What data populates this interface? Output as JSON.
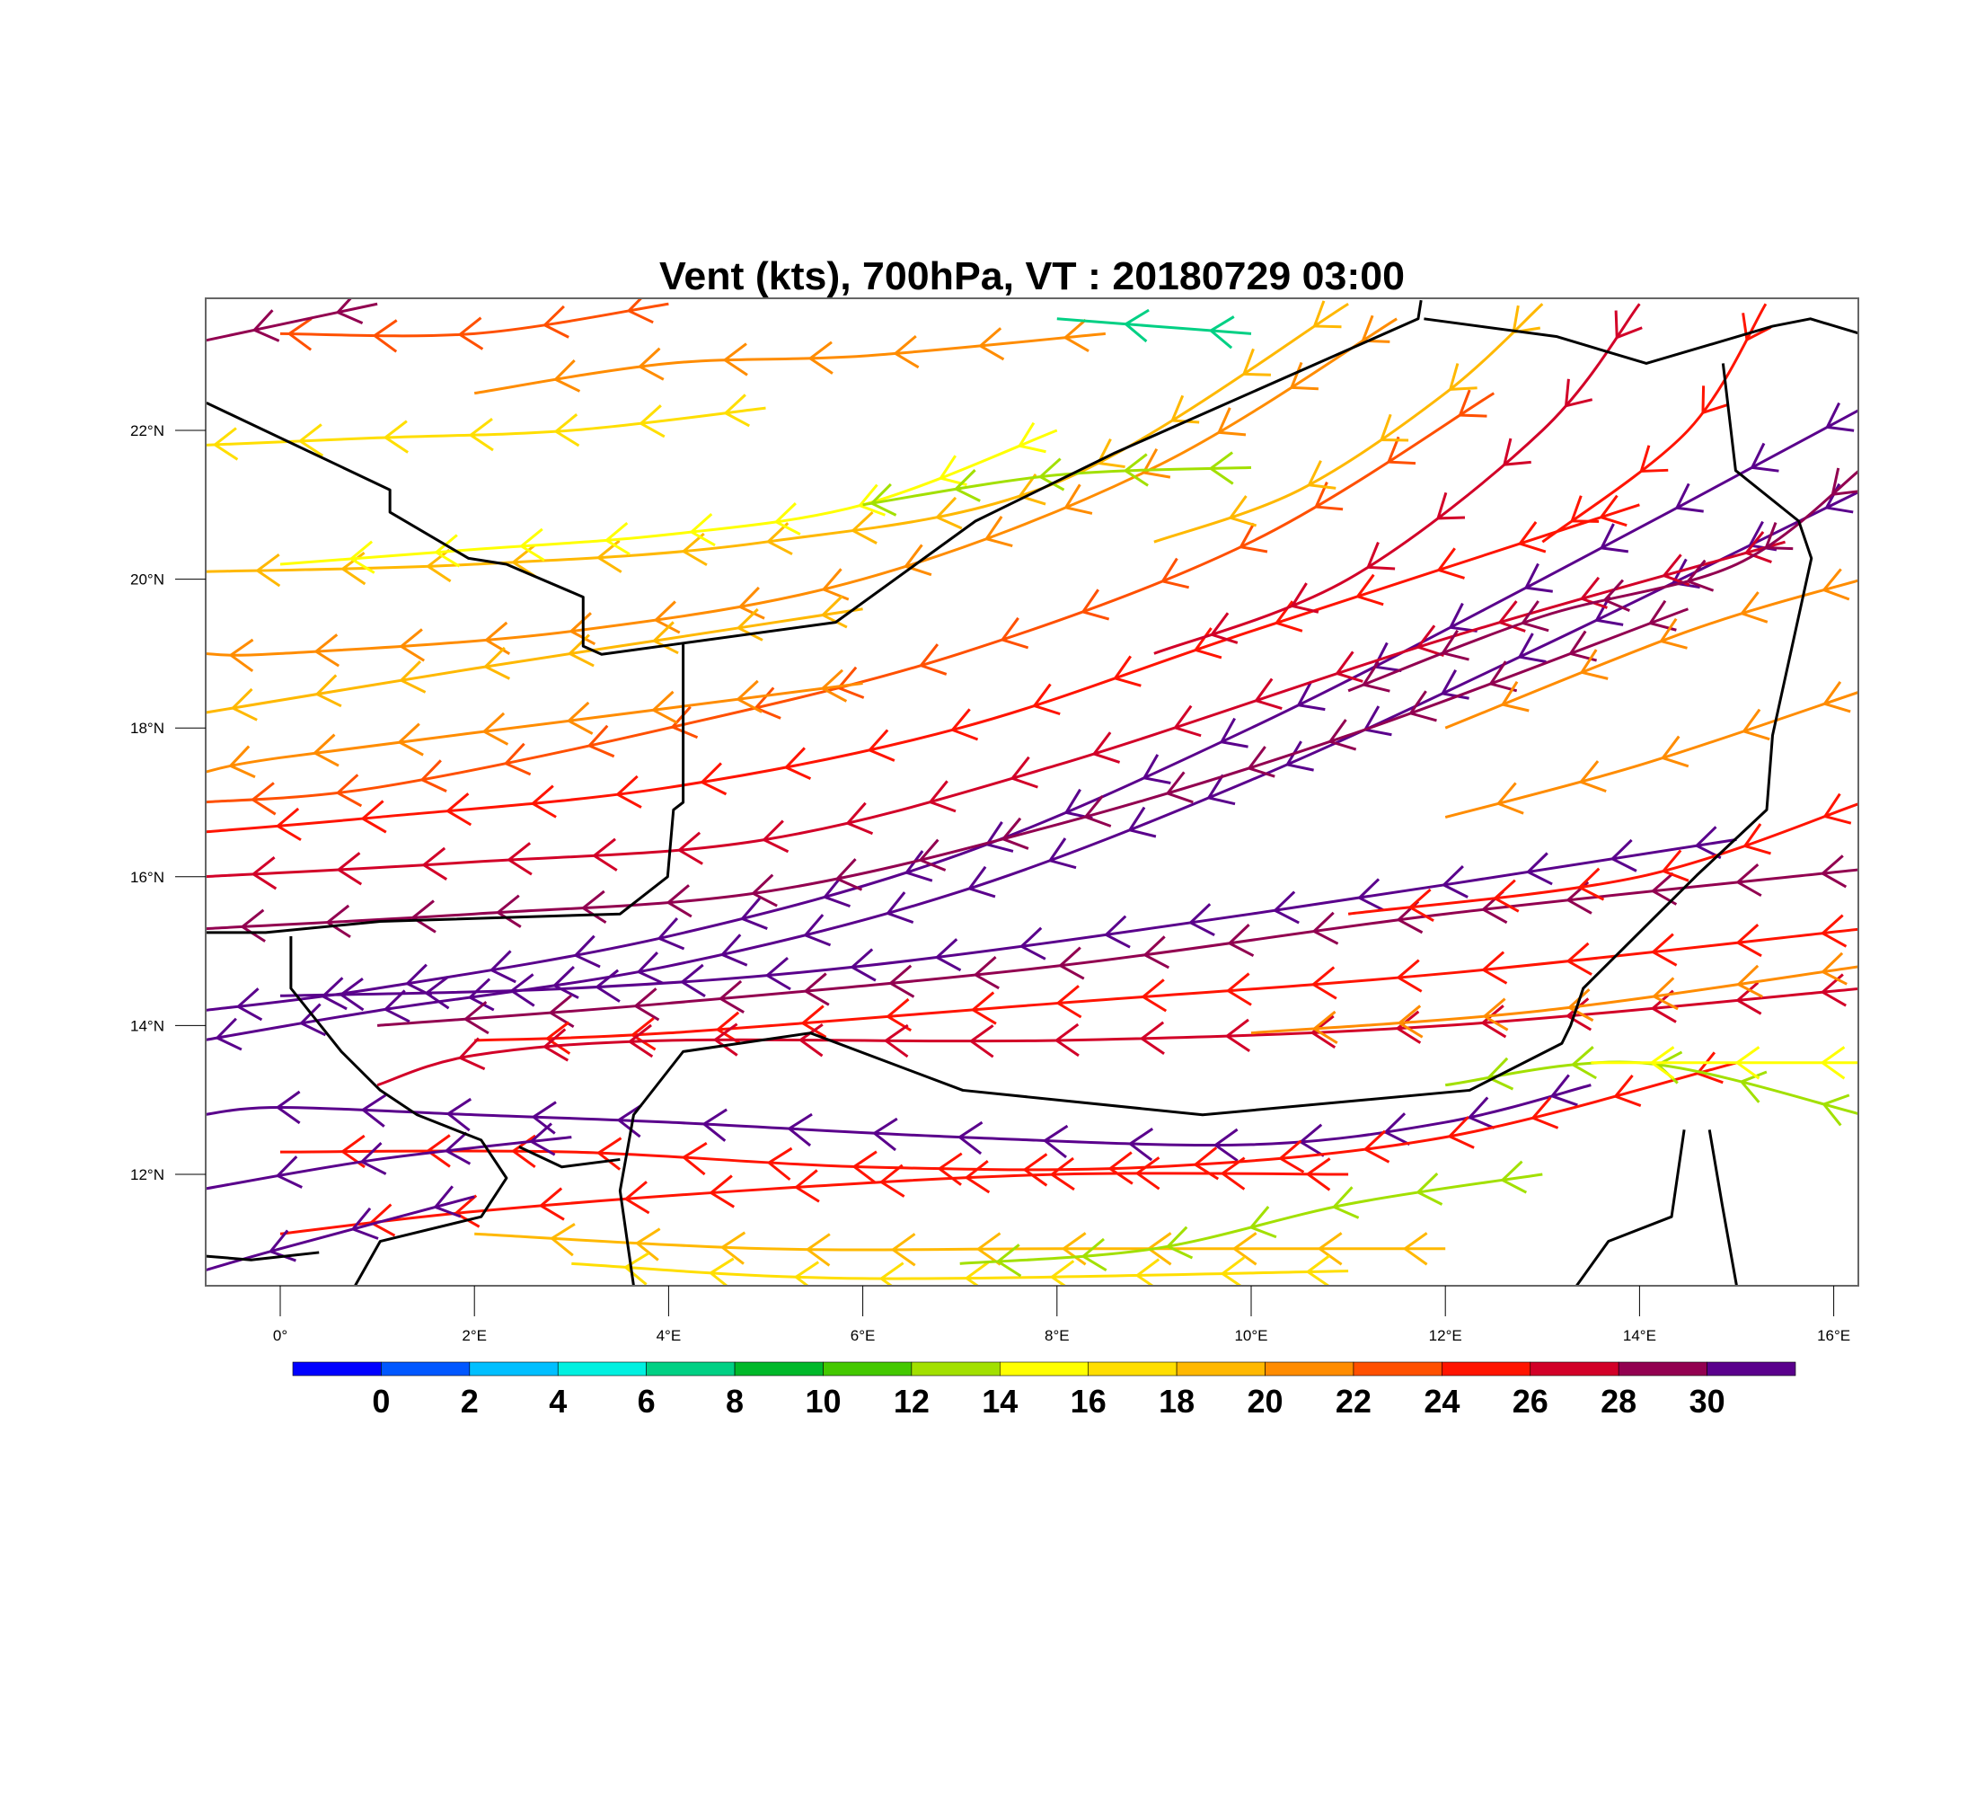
{
  "chart_data": {
    "type": "streamline-vector",
    "title": "Vent (kts), 700hPa, VT : 20180729  03:00",
    "xlim": [
      -0.76,
      16.27
    ],
    "ylim": [
      10.5,
      23.75
    ],
    "x_ticks": [
      {
        "value": 0,
        "label": "0°"
      },
      {
        "value": 2,
        "label": "2°E"
      },
      {
        "value": 4,
        "label": "4°E"
      },
      {
        "value": 6,
        "label": "6°E"
      },
      {
        "value": 8,
        "label": "8°E"
      },
      {
        "value": 10,
        "label": "10°E"
      },
      {
        "value": 12,
        "label": "12°E"
      },
      {
        "value": 14,
        "label": "14°E"
      },
      {
        "value": 16,
        "label": "16°E"
      }
    ],
    "y_ticks": [
      {
        "value": 12,
        "label": "12°N"
      },
      {
        "value": 14,
        "label": "14°N"
      },
      {
        "value": 16,
        "label": "16°N"
      },
      {
        "value": 18,
        "label": "18°N"
      },
      {
        "value": 20,
        "label": "20°N"
      },
      {
        "value": 22,
        "label": "22°N"
      }
    ],
    "colorbar": {
      "labels": [
        "0",
        "2",
        "4",
        "6",
        "8",
        "10",
        "12",
        "14",
        "16",
        "18",
        "20",
        "22",
        "24",
        "26",
        "28",
        "30"
      ],
      "colors": [
        "#0000ff",
        "#0057ff",
        "#00bfff",
        "#00f0e0",
        "#00d084",
        "#00b82a",
        "#44c800",
        "#a2e000",
        "#ffff00",
        "#ffde00",
        "#ffb800",
        "#ff8c00",
        "#ff5000",
        "#ff1400",
        "#d20028",
        "#920050",
        "#5a008c"
      ]
    },
    "streamlines": [
      {
        "speed": 30,
        "points": [
          [
            16.3,
            22.3
          ],
          [
            13,
            20
          ],
          [
            10,
            18
          ],
          [
            7,
            16.3
          ],
          [
            4,
            15.2
          ],
          [
            1,
            14.5
          ],
          [
            -0.8,
            14.2
          ]
        ]
      },
      {
        "speed": 31,
        "points": [
          [
            16.3,
            21.2
          ],
          [
            13,
            19.1
          ],
          [
            10,
            17.3
          ],
          [
            7,
            15.8
          ],
          [
            4,
            14.8
          ],
          [
            1,
            14.2
          ],
          [
            -0.8,
            13.8
          ]
        ]
      },
      {
        "speed": 29,
        "points": [
          [
            14.5,
            19.6
          ],
          [
            11,
            17.9
          ],
          [
            8,
            16.7
          ],
          [
            5,
            15.8
          ],
          [
            2,
            15.5
          ],
          [
            -0.8,
            15.3
          ]
        ]
      },
      {
        "speed": 31,
        "points": [
          [
            15,
            16.5
          ],
          [
            10,
            15.5
          ],
          [
            6,
            14.8
          ],
          [
            3,
            14.5
          ],
          [
            0,
            14.4
          ]
        ]
      },
      {
        "speed": 28,
        "points": [
          [
            16.3,
            16.1
          ],
          [
            12,
            15.5
          ],
          [
            8,
            14.8
          ],
          [
            4,
            14.3
          ],
          [
            1,
            14.0
          ]
        ]
      },
      {
        "speed": 25,
        "points": [
          [
            16.3,
            15.3
          ],
          [
            12,
            14.7
          ],
          [
            8,
            14.3
          ],
          [
            4,
            13.9
          ],
          [
            2,
            13.8
          ]
        ]
      },
      {
        "speed": 26,
        "points": [
          [
            16.3,
            14.5
          ],
          [
            12,
            14.0
          ],
          [
            8,
            13.8
          ],
          [
            4,
            13.8
          ],
          [
            2,
            13.6
          ],
          [
            1,
            13.2
          ]
        ]
      },
      {
        "speed": 21,
        "points": [
          [
            16.3,
            14.8
          ],
          [
            13,
            14.2
          ],
          [
            10,
            13.9
          ]
        ]
      },
      {
        "speed": 31,
        "points": [
          [
            13.5,
            13.2
          ],
          [
            12,
            12.7
          ],
          [
            10,
            12.4
          ],
          [
            7,
            12.5
          ],
          [
            4,
            12.7
          ],
          [
            2,
            12.8
          ],
          [
            0,
            12.9
          ],
          [
            -0.8,
            12.8
          ]
        ]
      },
      {
        "speed": 25,
        "points": [
          [
            15,
            13.5
          ],
          [
            12,
            12.5
          ],
          [
            9,
            12.1
          ],
          [
            6,
            12.1
          ],
          [
            3,
            12.3
          ],
          [
            0,
            12.3
          ]
        ]
      },
      {
        "speed": 24,
        "points": [
          [
            11,
            12.0
          ],
          [
            8,
            12.0
          ],
          [
            5,
            11.8
          ],
          [
            2,
            11.5
          ],
          [
            0,
            11.2
          ]
        ]
      },
      {
        "speed": 31,
        "points": [
          [
            3,
            12.5
          ],
          [
            1,
            12.2
          ],
          [
            -0.8,
            11.8
          ]
        ]
      },
      {
        "speed": 31,
        "points": [
          [
            2,
            11.7
          ],
          [
            0,
            11.0
          ],
          [
            -0.8,
            10.7
          ]
        ]
      },
      {
        "speed": 19,
        "points": [
          [
            12,
            11.0
          ],
          [
            8,
            11.0
          ],
          [
            5,
            11.0
          ],
          [
            2,
            11.2
          ]
        ]
      },
      {
        "speed": 16,
        "points": [
          [
            11,
            10.7
          ],
          [
            6,
            10.6
          ],
          [
            3,
            10.8
          ]
        ]
      },
      {
        "speed": 13,
        "points": [
          [
            16.3,
            12.8
          ],
          [
            14,
            13.5
          ],
          [
            12,
            13.2
          ]
        ]
      },
      {
        "speed": 15,
        "points": [
          [
            16.3,
            13.5
          ],
          [
            13.5,
            13.5
          ]
        ]
      },
      {
        "speed": 12,
        "points": [
          [
            13,
            12.0
          ],
          [
            11,
            11.6
          ],
          [
            9,
            11.0
          ],
          [
            7,
            10.8
          ]
        ]
      },
      {
        "speed": 26,
        "points": [
          [
            15.5,
            20.5
          ],
          [
            12,
            19.2
          ],
          [
            8,
            17.5
          ],
          [
            5,
            16.5
          ],
          [
            2,
            16.2
          ],
          [
            -0.8,
            16.0
          ]
        ]
      },
      {
        "speed": 24,
        "points": [
          [
            14,
            21
          ],
          [
            10,
            19.3
          ],
          [
            7,
            18
          ],
          [
            4,
            17.2
          ],
          [
            1,
            16.8
          ],
          [
            -0.8,
            16.6
          ]
        ]
      },
      {
        "speed": 22,
        "points": [
          [
            12.5,
            22.5
          ],
          [
            10,
            20.5
          ],
          [
            7,
            19
          ],
          [
            4,
            18
          ],
          [
            1,
            17.2
          ],
          [
            -0.8,
            17.0
          ]
        ]
      },
      {
        "speed": 20,
        "points": [
          [
            11.5,
            23.5
          ],
          [
            9,
            21.5
          ],
          [
            6,
            20
          ],
          [
            3,
            19.3
          ],
          [
            0,
            19
          ],
          [
            -0.8,
            19
          ]
        ]
      },
      {
        "speed": 18,
        "points": [
          [
            11,
            23.7
          ],
          [
            8,
            21.3
          ],
          [
            5,
            20.5
          ],
          [
            2,
            20.2
          ],
          [
            -0.8,
            20.1
          ]
        ]
      },
      {
        "speed": 28,
        "points": [
          [
            16.3,
            21.5
          ],
          [
            15,
            20.2
          ],
          [
            13,
            19.5
          ],
          [
            11,
            18.5
          ]
        ]
      },
      {
        "speed": 20,
        "points": [
          [
            16.3,
            20
          ],
          [
            14.5,
            19.3
          ],
          [
            12,
            18
          ]
        ]
      },
      {
        "speed": 21,
        "points": [
          [
            16.3,
            18.5
          ],
          [
            14,
            17.5
          ],
          [
            12,
            16.8
          ]
        ]
      },
      {
        "speed": 25,
        "points": [
          [
            16.3,
            17
          ],
          [
            14,
            16
          ],
          [
            11,
            15.5
          ]
        ]
      },
      {
        "speed": 26,
        "points": [
          [
            14,
            23.7
          ],
          [
            13,
            22
          ],
          [
            11,
            20
          ],
          [
            9,
            19
          ]
        ]
      },
      {
        "speed": 25,
        "points": [
          [
            15.3,
            23.7
          ],
          [
            14.5,
            22
          ],
          [
            13,
            20.5
          ]
        ]
      },
      {
        "speed": 19,
        "points": [
          [
            13,
            23.7
          ],
          [
            12,
            22.5
          ],
          [
            10.5,
            21.2
          ],
          [
            9,
            20.5
          ]
        ]
      },
      {
        "speed": 14,
        "points": [
          [
            8,
            22
          ],
          [
            6,
            21
          ],
          [
            4,
            20.6
          ],
          [
            2,
            20.4
          ],
          [
            0,
            20.2
          ]
        ]
      },
      {
        "speed": 16,
        "points": [
          [
            5,
            22.3
          ],
          [
            3,
            22.0
          ],
          [
            1,
            21.9
          ],
          [
            -0.8,
            21.8
          ]
        ]
      },
      {
        "speed": 20,
        "points": [
          [
            8.5,
            23.3
          ],
          [
            6,
            23
          ],
          [
            4,
            22.9
          ],
          [
            2,
            22.5
          ]
        ]
      },
      {
        "speed": 7,
        "points": [
          [
            10,
            23.3
          ],
          [
            9,
            23.4
          ],
          [
            8,
            23.5
          ]
        ]
      },
      {
        "speed": 22,
        "points": [
          [
            4,
            23.7
          ],
          [
            2,
            23.3
          ],
          [
            0,
            23.3
          ]
        ]
      },
      {
        "speed": 29,
        "points": [
          [
            1,
            23.7
          ],
          [
            -0.8,
            23.2
          ]
        ]
      },
      {
        "speed": 12,
        "points": [
          [
            10,
            21.5
          ],
          [
            8,
            21.4
          ],
          [
            6,
            21
          ]
        ]
      },
      {
        "speed": 18,
        "points": [
          [
            6,
            19.6
          ],
          [
            4,
            19.2
          ],
          [
            2,
            18.8
          ],
          [
            -0.8,
            18.2
          ]
        ]
      },
      {
        "speed": 21,
        "points": [
          [
            6,
            18.6
          ],
          [
            3,
            18.1
          ],
          [
            0,
            17.6
          ],
          [
            -0.8,
            17.4
          ]
        ]
      }
    ],
    "borders": [
      [
        [
          -0.76,
          22.37
        ],
        [
          1.13,
          21.2
        ],
        [
          1.13,
          20.9
        ],
        [
          1.94,
          20.28
        ],
        [
          2.33,
          20.2
        ],
        [
          3.12,
          19.76
        ],
        [
          3.12,
          19.1
        ],
        [
          3.31,
          18.99
        ],
        [
          4.15,
          19.14
        ],
        [
          5.72,
          19.42
        ],
        [
          7.16,
          20.78
        ],
        [
          8.6,
          21.7
        ],
        [
          11.72,
          23.5
        ],
        [
          11.75,
          23.75
        ]
      ],
      [
        [
          11.78,
          23.5
        ],
        [
          13.15,
          23.26
        ],
        [
          14.07,
          22.9
        ],
        [
          15.37,
          23.4
        ],
        [
          15.76,
          23.5
        ],
        [
          16.27,
          23.3
        ]
      ],
      [
        [
          4.15,
          19.14
        ],
        [
          4.15,
          17.0
        ],
        [
          4.05,
          16.9
        ],
        [
          3.99,
          16.0
        ],
        [
          3.5,
          15.5
        ],
        [
          1.03,
          15.4
        ],
        [
          -0.15,
          15.25
        ],
        [
          -0.76,
          15.25
        ]
      ],
      [
        [
          0.11,
          15.2
        ],
        [
          0.11,
          14.5
        ],
        [
          0.63,
          13.65
        ],
        [
          1.03,
          13.13
        ],
        [
          1.41,
          12.8
        ],
        [
          2.07,
          12.46
        ],
        [
          2.33,
          11.95
        ],
        [
          2.07,
          11.43
        ],
        [
          1.03,
          11.1
        ],
        [
          0.77,
          10.5
        ]
      ],
      [
        [
          14.86,
          22.9
        ],
        [
          14.99,
          21.46
        ],
        [
          15.64,
          20.78
        ],
        [
          15.77,
          20.28
        ],
        [
          15.37,
          17.9
        ],
        [
          15.31,
          16.9
        ],
        [
          14.59,
          16.02
        ],
        [
          13.42,
          14.5
        ],
        [
          13.29,
          14.0
        ],
        [
          13.2,
          13.76
        ],
        [
          12.25,
          13.13
        ],
        [
          9.5,
          12.8
        ],
        [
          7.03,
          13.13
        ],
        [
          5.46,
          13.9
        ],
        [
          4.15,
          13.65
        ],
        [
          3.64,
          12.8
        ],
        [
          3.5,
          11.78
        ],
        [
          3.64,
          10.5
        ]
      ],
      [
        [
          14.46,
          12.6
        ],
        [
          14.33,
          11.43
        ],
        [
          13.68,
          11.1
        ],
        [
          13.35,
          10.5
        ]
      ],
      [
        [
          14.72,
          12.6
        ],
        [
          14.85,
          11.6
        ],
        [
          15.0,
          10.5
        ]
      ],
      [
        [
          -0.76,
          10.9
        ],
        [
          -0.3,
          10.85
        ],
        [
          0.4,
          10.95
        ]
      ],
      [
        [
          2.46,
          12.37
        ],
        [
          2.9,
          12.1
        ],
        [
          3.5,
          12.2
        ]
      ]
    ]
  }
}
